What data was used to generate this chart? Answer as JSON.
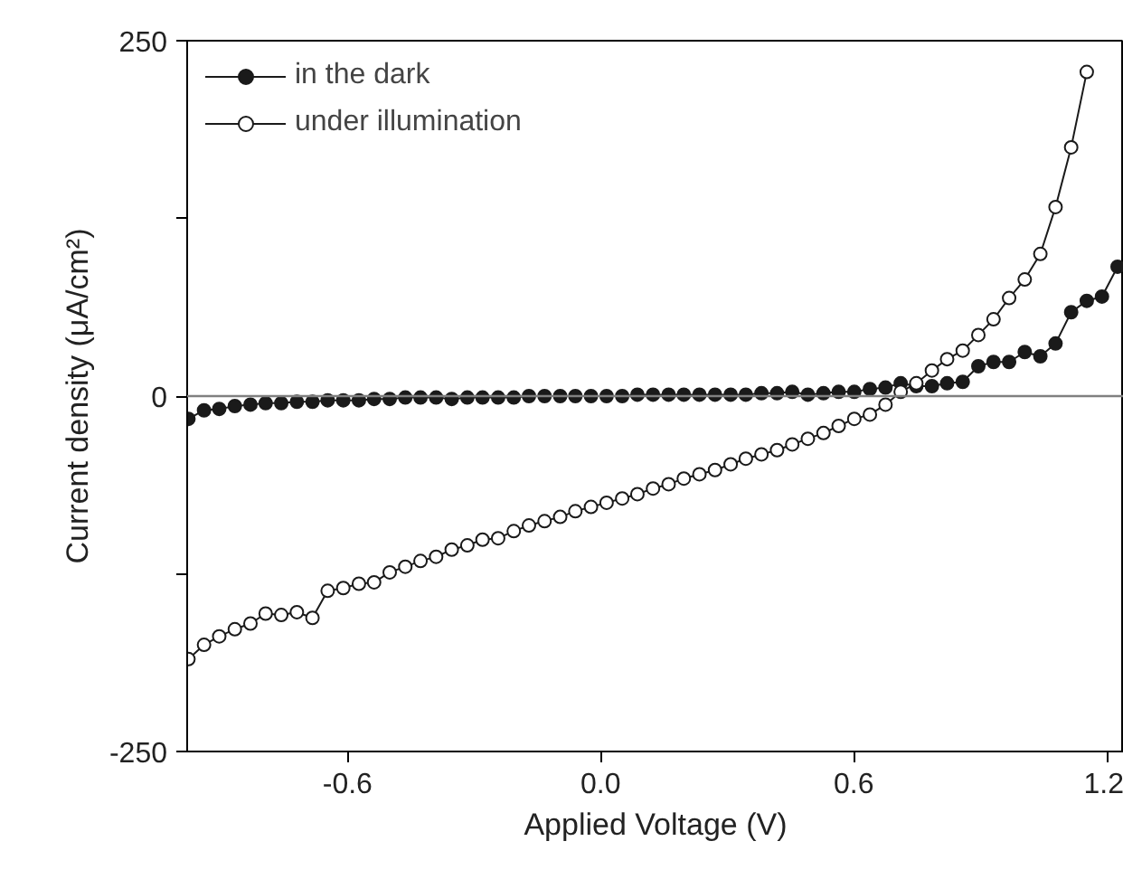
{
  "chart_data": {
    "type": "line",
    "xlabel": "Applied Voltage (V)",
    "ylabel": "Current density (μA/cm²)",
    "x": [
      -0.977,
      -0.94,
      -0.904,
      -0.867,
      -0.83,
      -0.794,
      -0.757,
      -0.72,
      -0.683,
      -0.647,
      -0.61,
      -0.573,
      -0.537,
      -0.5,
      -0.463,
      -0.427,
      -0.39,
      -0.353,
      -0.316,
      -0.28,
      -0.243,
      -0.206,
      -0.17,
      -0.133,
      -0.096,
      -0.06,
      -0.023,
      0.014,
      0.051,
      0.087,
      0.124,
      0.161,
      0.197,
      0.234,
      0.271,
      0.308,
      0.344,
      0.381,
      0.418,
      0.454,
      0.491,
      0.528,
      0.564,
      0.601,
      0.638,
      0.675,
      0.711,
      0.748,
      0.785,
      0.821,
      0.858,
      0.895,
      0.931,
      0.968,
      1.005,
      1.042,
      1.078,
      1.115,
      1.152,
      1.188,
      1.225
    ],
    "series": [
      {
        "name": "in the dark",
        "color": "#1a1a1a",
        "marker": "circle",
        "values": [
          -16,
          -10,
          -9,
          -7,
          -6,
          -5,
          -5,
          -4,
          -4,
          -3,
          -3,
          -3,
          -2,
          -2,
          -1,
          -1,
          -1,
          -2,
          -1,
          -1,
          -1,
          -1,
          0,
          0,
          0,
          0,
          0,
          0,
          0,
          1,
          1,
          1,
          1,
          1,
          1,
          1,
          1,
          2,
          2,
          3,
          1,
          2,
          3,
          3,
          5,
          6,
          9,
          7,
          7,
          9,
          10,
          21,
          24,
          24,
          31,
          28,
          37,
          59,
          67,
          70,
          91
        ]
      },
      {
        "name": "under illumination",
        "color": "#1a1a1a",
        "marker": "circle_open",
        "values": [
          -185,
          -175,
          -169,
          -164,
          -160,
          -153,
          -154,
          -152,
          -156,
          -137,
          -135,
          -132,
          -131,
          -124,
          -120,
          -116,
          -113,
          -108,
          -105,
          -101,
          -100,
          -95,
          -91,
          -88,
          -85,
          -81,
          -78,
          -75,
          -72,
          -69,
          -65,
          -62,
          -58,
          -55,
          -52,
          -48,
          -44,
          -41,
          -38,
          -34,
          -30,
          -26,
          -21,
          -16,
          -13,
          -6,
          3,
          9,
          18,
          26,
          32,
          43,
          54,
          69,
          82,
          100,
          133,
          175,
          228,
          null,
          null
        ]
      }
    ],
    "xlim": [
      -0.98,
      1.24
    ],
    "ylim": [
      -250,
      250
    ],
    "xticks": [
      -0.6,
      {
        "value": 0,
        "label": "0.0"
      },
      0.6,
      1.2
    ],
    "yticks": [
      -250,
      {
        "value": -125,
        "label": null
      },
      0,
      {
        "value": 125,
        "label": null
      },
      250
    ],
    "ref_lines": [
      {
        "axis": "y",
        "value": 0,
        "color": "#808080"
      }
    ],
    "legend": "top left",
    "grid": false,
    "line_style": "solid"
  }
}
